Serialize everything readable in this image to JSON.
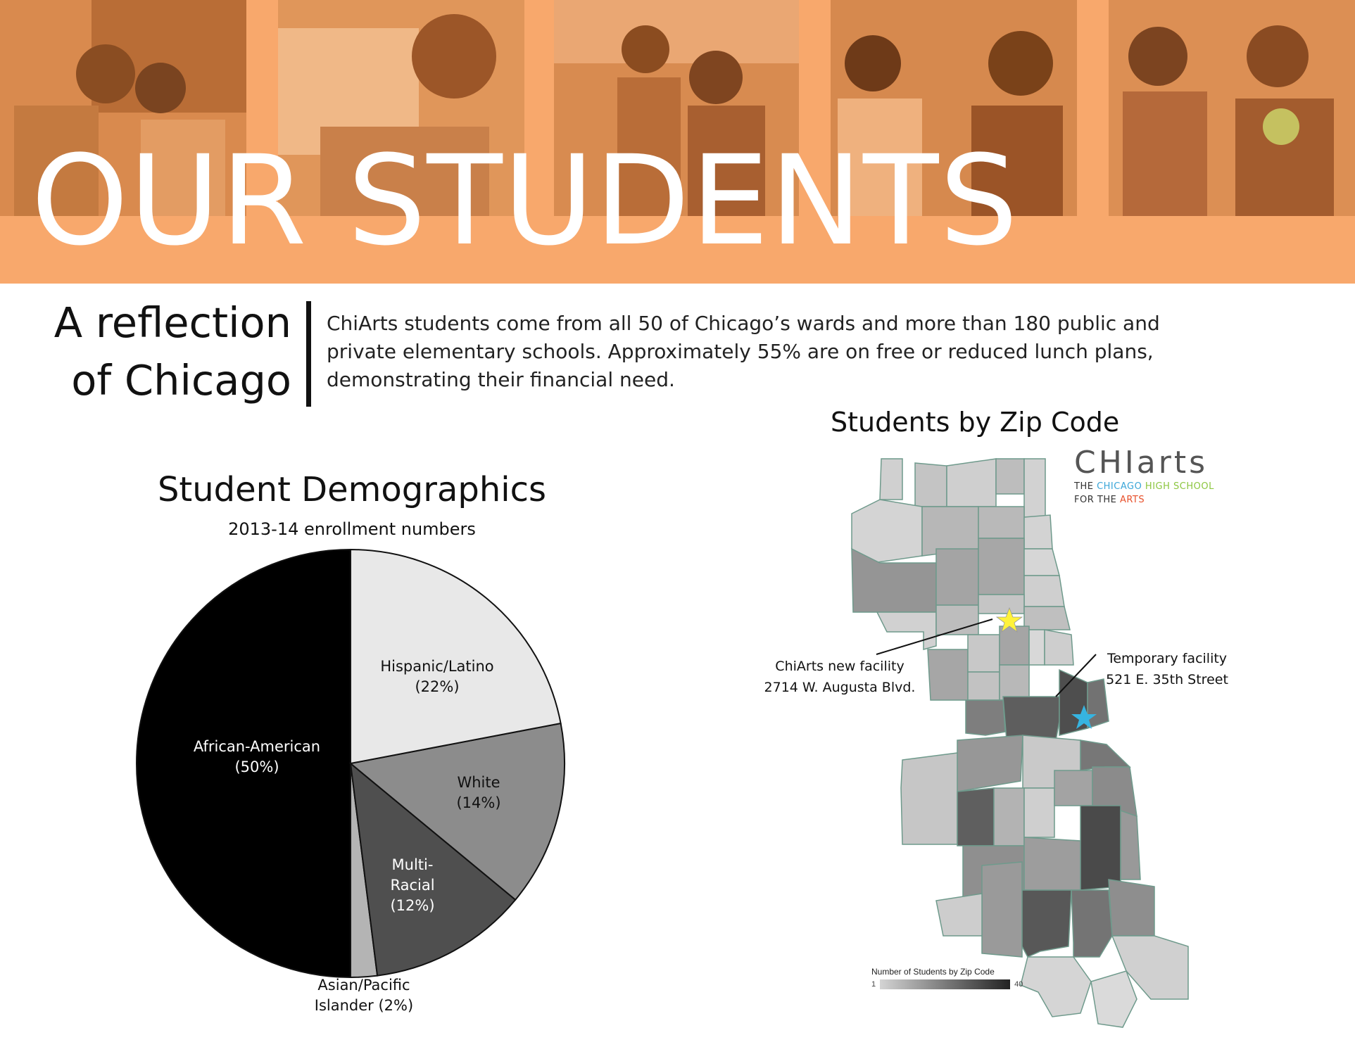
{
  "banner": {
    "title": "OUR STUDENTS",
    "accent_color": "#f8a86c"
  },
  "intro": {
    "heading_line1": "A reflection",
    "heading_line2": "of Chicago",
    "body_lines": [
      "ChiArts students come from all 50 of Chicago’s wards and more than 180 public and",
      "private elementary schools. Approximately 55% are on free or reduced lunch plans,",
      "demonstrating their financial need."
    ]
  },
  "chart_data": [
    {
      "type": "pie",
      "title": "Student Demographics",
      "subtitle": "2013-14 enrollment numbers",
      "slices": [
        {
          "label": "African-American",
          "value": 50,
          "color": "#000000",
          "text_color": "#ffffff"
        },
        {
          "label": "Asian/Pacific Islander",
          "value": 2,
          "color": "#b4b4b4",
          "text_color": "#111111"
        },
        {
          "label": "Multi-Racial",
          "value": 12,
          "color": "#4f4f4f",
          "text_color": "#ffffff"
        },
        {
          "label": "White",
          "value": 14,
          "color": "#8c8c8c",
          "text_color": "#111111"
        },
        {
          "label": "Hispanic/Latino",
          "value": 22,
          "color": "#e8e8e8",
          "text_color": "#111111"
        }
      ],
      "slice_labels": [
        {
          "lines": [
            "African-American",
            "(50%)"
          ]
        },
        {
          "lines": [
            "Asian/Pacific",
            "Islander (2%)"
          ]
        },
        {
          "lines": [
            "Multi-",
            "Racial",
            "(12%)"
          ]
        },
        {
          "lines": [
            "White",
            "(14%)"
          ]
        },
        {
          "lines": [
            "Hispanic/Latino",
            "(22%)"
          ]
        }
      ]
    },
    {
      "type": "heatmap",
      "title": "Students by Zip Code",
      "legend_title": "Number of Students by Zip Code",
      "legend_min": "1",
      "legend_max": "40",
      "markers": [
        {
          "name": "ChiArts new facility",
          "lines": [
            "ChiArts new facility",
            "2714 W. Augusta Blvd."
          ],
          "color": "#fff23a"
        },
        {
          "name": "Temporary facility",
          "lines": [
            "Temporary facility",
            "521 E. 35th Street"
          ],
          "color": "#36b4e0"
        }
      ]
    }
  ],
  "logo": {
    "wordmark": "CHIarts",
    "line1_prefix": "THE ",
    "line1_chicago": "CHICAGO",
    "line1_high_school": " HIGH SCHOOL",
    "line2_prefix": "FOR THE ",
    "line2_arts": "ARTS",
    "chicago_color": "#3aa6d8",
    "high_school_color": "#8cc63f",
    "arts_color": "#e8502b"
  }
}
